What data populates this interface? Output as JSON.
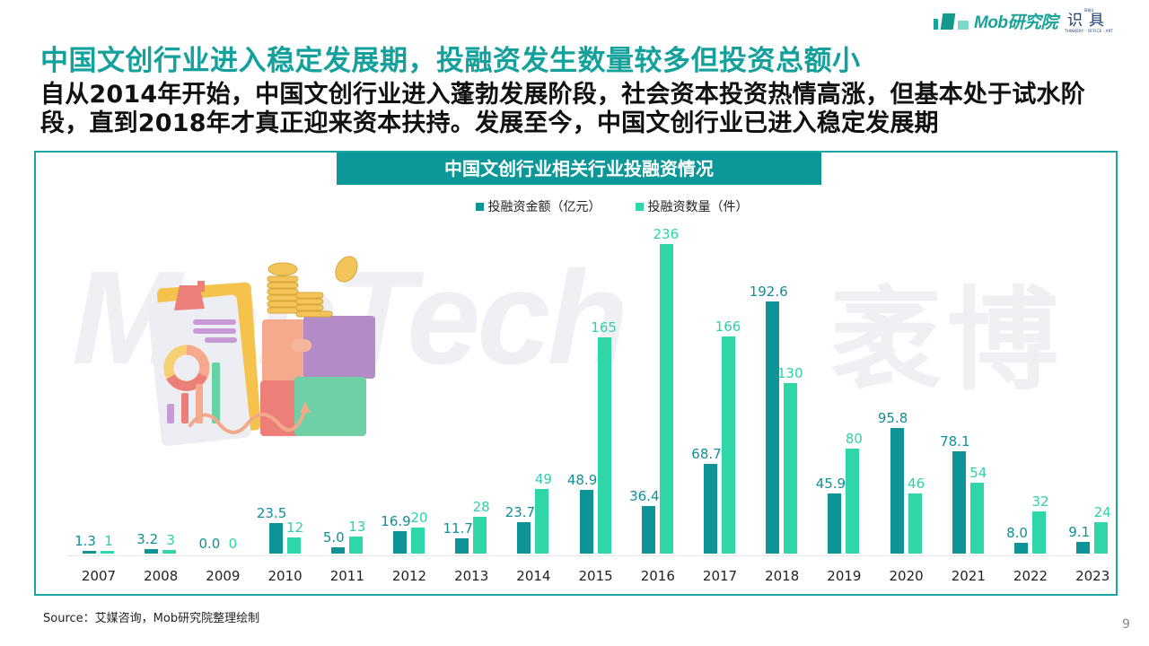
{
  "logo": {
    "brand": "Mob研究院",
    "sub_top": "SHIJU",
    "sub_main": "识具",
    "sub_bottom": "THINKERY · OFFICE · ART"
  },
  "header": {
    "title": "中国文创行业进入稳定发展期，投融资发生数量较多但投资总额小",
    "subtitle": "自从2014年开始，中国文创行业进入蓬勃发展阶段，社会资本投资热情高涨，但基本处于试水阶段，直到2018年才真正迎来资本扶持。发展至今，中国文创行业已进入稳定发展期"
  },
  "panel": {
    "title": "中国文创行业相关行业投融资情况",
    "watermark": "MobTech",
    "watermark_cn": "袤博"
  },
  "colors": {
    "amount": "#0e9497",
    "count": "#2ed6a8",
    "title": "#14a09b",
    "panel_border": "#1ba5a2"
  },
  "chart_data": {
    "type": "bar",
    "title": "中国文创行业相关行业投融资情况",
    "xlabel": "",
    "ylabel": "",
    "legend_position": "top",
    "grid": false,
    "categories": [
      "2007",
      "2008",
      "2009",
      "2010",
      "2011",
      "2012",
      "2013",
      "2014",
      "2015",
      "2016",
      "2017",
      "2018",
      "2019",
      "2020",
      "2021",
      "2022",
      "2023"
    ],
    "series": [
      {
        "name": "投融资金额（亿元）",
        "color": "#0e9497",
        "values": [
          1.3,
          3.2,
          0.0,
          23.5,
          5.0,
          16.9,
          11.7,
          23.7,
          48.9,
          36.4,
          68.7,
          192.6,
          45.9,
          95.8,
          78.1,
          8.0,
          9.1
        ],
        "labels": [
          "1.3",
          "3.2",
          "0.0",
          "23.5",
          "5.0",
          "16.9",
          "11.7",
          "23.7",
          "48.9",
          "36.4",
          "68.7",
          "192.6",
          "45.9",
          "95.8",
          "78.1",
          "8.0",
          "9.1"
        ]
      },
      {
        "name": "投融资数量（件）",
        "color": "#2ed6a8",
        "values": [
          1,
          3,
          0,
          12,
          13,
          20,
          28,
          49,
          165,
          236,
          166,
          130,
          80,
          46,
          54,
          32,
          24
        ],
        "labels": [
          "1",
          "3",
          "0",
          "12",
          "13",
          "20",
          "28",
          "49",
          "165",
          "236",
          "166",
          "130",
          "80",
          "46",
          "54",
          "32",
          "24"
        ]
      }
    ],
    "ylim": [
      0,
      240
    ]
  },
  "footer": {
    "source": "Source：艾媒咨询，Mob研究院整理绘制",
    "page": "9"
  }
}
